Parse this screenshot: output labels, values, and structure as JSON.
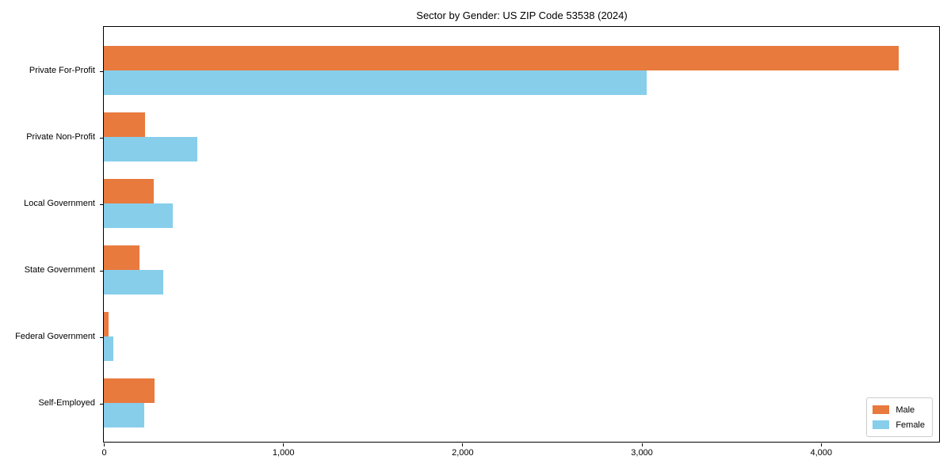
{
  "chart_data": {
    "type": "bar",
    "orientation": "horizontal",
    "title": "Sector by Gender: US ZIP Code 53538 (2024)",
    "categories": [
      "Private For-Profit",
      "Private Non-Profit",
      "Local Government",
      "State Government",
      "Federal Government",
      "Self-Employed"
    ],
    "series": [
      {
        "name": "Male",
        "color": "#E87A3E",
        "values": [
          4433,
          228,
          280,
          199,
          26,
          284
        ]
      },
      {
        "name": "Female",
        "color": "#87CEEB",
        "values": [
          3029,
          522,
          383,
          331,
          51,
          225
        ]
      }
    ],
    "xlabel": "",
    "ylabel": "",
    "xlim": [
      0,
      4660
    ],
    "x_ticks": [
      0,
      1000,
      2000,
      3000,
      4000
    ],
    "x_tick_labels": [
      "0",
      "1,000",
      "2,000",
      "3,000",
      "4,000"
    ],
    "grid": false,
    "legend": {
      "position": "lower right",
      "entries": [
        "Male",
        "Female"
      ]
    }
  }
}
